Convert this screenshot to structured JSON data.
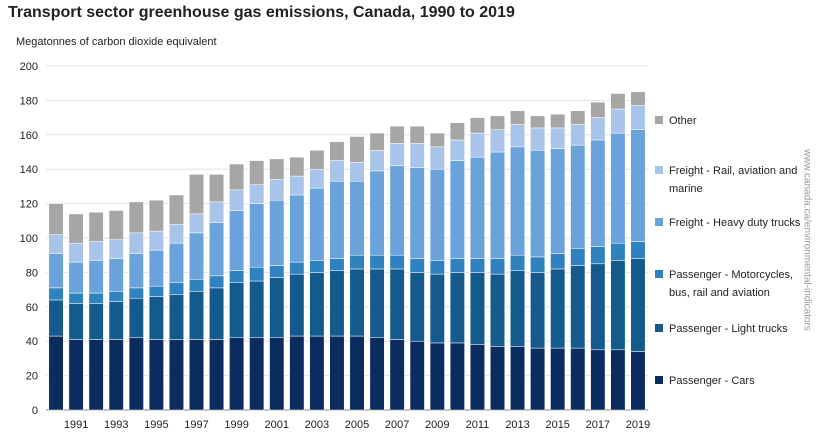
{
  "chart_data": {
    "type": "bar",
    "stacked": true,
    "title": "Transport sector greenhouse gas emissions, Canada, 1990 to 2019",
    "ylabel": "Megatonnes of carbon dioxide equivalent",
    "xlabel": "",
    "ylim": [
      0,
      200
    ],
    "yticks": [
      0,
      20,
      40,
      60,
      80,
      100,
      120,
      140,
      160,
      180,
      200
    ],
    "grid": "horizontal",
    "legend_position": "right",
    "categories": [
      1990,
      1991,
      1992,
      1993,
      1994,
      1995,
      1996,
      1997,
      1998,
      1999,
      2000,
      2001,
      2002,
      2003,
      2004,
      2005,
      2006,
      2007,
      2008,
      2009,
      2010,
      2011,
      2012,
      2013,
      2014,
      2015,
      2016,
      2017,
      2018,
      2019
    ],
    "xtick_labels": [
      "1991",
      "1993",
      "1995",
      "1997",
      "1999",
      "2001",
      "2003",
      "2005",
      "2007",
      "2009",
      "2011",
      "2013",
      "2015",
      "2017",
      "2019"
    ],
    "series": [
      {
        "name": "Passenger - Cars",
        "color": "#0b2c5e",
        "values": [
          43,
          41,
          41,
          41,
          42,
          41,
          41,
          41,
          41,
          42,
          42,
          42,
          43,
          43,
          43,
          43,
          42,
          41,
          40,
          39,
          39,
          38,
          37,
          37,
          36,
          36,
          36,
          35,
          35,
          34
        ]
      },
      {
        "name": "Passenger - Light trucks",
        "color": "#145a8c",
        "values": [
          21,
          21,
          21,
          22,
          23,
          25,
          26,
          28,
          30,
          32,
          33,
          35,
          36,
          37,
          38,
          39,
          40,
          41,
          40,
          40,
          41,
          42,
          42,
          44,
          44,
          46,
          48,
          50,
          52,
          54
        ]
      },
      {
        "name": "Passenger - Motorcycles, bus, rail and aviation",
        "color": "#2f82bd",
        "values": [
          7,
          6,
          6,
          6,
          6,
          6,
          7,
          7,
          7,
          7,
          8,
          7,
          7,
          7,
          7,
          8,
          8,
          8,
          8,
          8,
          8,
          8,
          9,
          9,
          9,
          9,
          10,
          10,
          10,
          10
        ]
      },
      {
        "name": "Freight - Heavy duty trucks",
        "color": "#6aa3dc",
        "values": [
          20,
          18,
          19,
          19,
          20,
          21,
          23,
          27,
          31,
          35,
          37,
          38,
          39,
          42,
          45,
          43,
          49,
          52,
          53,
          53,
          57,
          59,
          62,
          63,
          62,
          61,
          60,
          62,
          64,
          65
        ]
      },
      {
        "name": "Freight - Rail, aviation and marine",
        "color": "#a8c4e8",
        "values": [
          11,
          11,
          11,
          11,
          12,
          11,
          11,
          11,
          12,
          12,
          11,
          12,
          11,
          11,
          12,
          11,
          12,
          13,
          14,
          13,
          12,
          14,
          13,
          13,
          13,
          12,
          12,
          13,
          14,
          14
        ]
      },
      {
        "name": "Other",
        "color": "#a6a6a6",
        "values": [
          18,
          17,
          17,
          17,
          18,
          18,
          17,
          23,
          16,
          15,
          14,
          12,
          11,
          11,
          11,
          15,
          10,
          10,
          10,
          8,
          10,
          9,
          8,
          8,
          7,
          8,
          8,
          9,
          9,
          8
        ]
      }
    ]
  },
  "watermark": "www.canada.ca/environmental-indicators"
}
